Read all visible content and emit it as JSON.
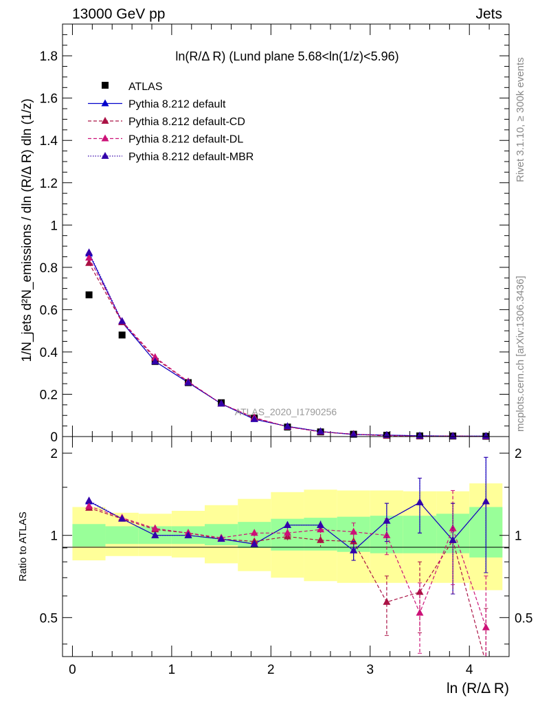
{
  "header": {
    "left": "13000 GeV pp",
    "right": "Jets"
  },
  "side_labels": {
    "rivet": "Rivet 3.1.10, ≥ 300k events",
    "mcplots": "mcplots.cern.ch [arXiv:1306.3436]"
  },
  "watermark": "ATLAS_2020_I1790256",
  "chart_data": [
    {
      "type": "scatter",
      "panel": "main",
      "title": "ln(R/Δ R) (Lund plane 5.68<ln(1/z)<5.96)",
      "xlabel": "ln (R/Δ R)",
      "ylabel": "1/N_jets d²N_emissions / dln (R/Δ R) dln (1/z)",
      "xlim": [
        -0.1,
        4.4
      ],
      "ylim": [
        0,
        1.95
      ],
      "yticks": [
        0,
        0.2,
        0.4,
        0.6,
        0.8,
        1,
        1.2,
        1.4,
        1.6,
        1.8
      ],
      "ytick_labels": [
        "0",
        "0.2",
        "0.4",
        "0.6",
        "0.8",
        "1",
        "1.2",
        "1.4",
        "1.6",
        "1.8"
      ],
      "legend": "top-left",
      "x": [
        0.167,
        0.5,
        0.833,
        1.167,
        1.5,
        1.833,
        2.167,
        2.5,
        2.833,
        3.167,
        3.5,
        3.833,
        4.167
      ],
      "series": [
        {
          "name": "ATLAS",
          "color": "#000000",
          "style": "data",
          "values": [
            0.67,
            0.48,
            0.355,
            0.255,
            0.16,
            0.088,
            0.045,
            0.022,
            0.011,
            0.006,
            0.003,
            0.0025,
            0.0015
          ]
        },
        {
          "name": "Pythia 8.212 default",
          "color": "#0000cc",
          "style": "solid",
          "values": [
            0.865,
            0.54,
            0.355,
            0.255,
            0.155,
            0.082,
            0.048,
            0.024,
            0.0098,
            0.0068,
            0.004,
            0.0024,
            0.002
          ]
        },
        {
          "name": "Pythia 8.212 default-CD",
          "color": "#aa1144",
          "style": "dashed",
          "values": [
            0.82,
            0.54,
            0.37,
            0.258,
            0.155,
            0.087,
            0.046,
            0.022,
            0.011,
            0.0035,
            0.0015,
            0.0025,
            0.0007
          ]
        },
        {
          "name": "Pythia 8.212 default-DL",
          "color": "#cc1177",
          "style": "dashed",
          "values": [
            0.845,
            0.545,
            0.375,
            0.26,
            0.155,
            0.09,
            0.046,
            0.023,
            0.0115,
            0.006,
            0.0016,
            0.0026,
            0.0005
          ]
        },
        {
          "name": "Pythia 8.212 default-MBR",
          "color": "#3300aa",
          "style": "dotted",
          "values": [
            0.87,
            0.545,
            0.355,
            0.255,
            0.155,
            0.082,
            0.048,
            0.024,
            0.0098,
            0.0068,
            0.004,
            0.0024,
            0.002
          ]
        }
      ]
    },
    {
      "type": "scatter",
      "panel": "ratio",
      "xlabel": "ln (R/Δ R)",
      "ylabel": "Ratio to ATLAS",
      "xlim": [
        -0.1,
        4.4
      ],
      "ylim": [
        0.36,
        2.3
      ],
      "yticks": [
        0.5,
        1,
        2
      ],
      "ytick_labels": [
        "0.5",
        "1",
        "2"
      ],
      "xticks": [
        0,
        1,
        2,
        3,
        4
      ],
      "xtick_labels": [
        "0",
        "1",
        "2",
        "3",
        "4"
      ],
      "x": [
        0.167,
        0.5,
        0.833,
        1.167,
        1.5,
        1.833,
        2.167,
        2.5,
        2.833,
        3.167,
        3.5,
        3.833,
        4.167
      ],
      "x_edges": [
        0.0,
        0.333,
        0.667,
        1.0,
        1.333,
        1.667,
        2.0,
        2.333,
        2.667,
        3.0,
        3.333,
        3.667,
        4.0,
        4.333
      ],
      "bands": {
        "inner_color": "#99ff99",
        "outer_color": "#ffff99",
        "inner_lo": [
          0.91,
          0.93,
          0.93,
          0.93,
          0.92,
          0.9,
          0.88,
          0.88,
          0.87,
          0.86,
          0.86,
          0.86,
          0.83
        ],
        "inner_hi": [
          1.1,
          1.08,
          1.08,
          1.08,
          1.1,
          1.12,
          1.15,
          1.16,
          1.17,
          1.18,
          1.18,
          1.2,
          1.27
        ],
        "outer_lo": [
          0.81,
          0.84,
          0.84,
          0.83,
          0.79,
          0.74,
          0.7,
          0.68,
          0.67,
          0.67,
          0.67,
          0.67,
          0.63
        ],
        "outer_hi": [
          1.27,
          1.21,
          1.2,
          1.23,
          1.29,
          1.36,
          1.44,
          1.47,
          1.46,
          1.46,
          1.45,
          1.45,
          1.55
        ]
      },
      "series": [
        {
          "name": "Pythia 8.212 default",
          "color": "#0000cc",
          "style": "solid",
          "values": [
            1.33,
            1.15,
            1.0,
            1.0,
            0.97,
            0.93,
            1.09,
            1.09,
            0.88,
            1.13,
            1.32,
            0.96,
            1.33
          ],
          "err": [
            0.01,
            0.01,
            0.01,
            0.01,
            0.01,
            0.02,
            0.03,
            0.04,
            0.07,
            0.18,
            0.3,
            0.35,
            0.6
          ]
        },
        {
          "name": "Pythia 8.212 default-CD",
          "color": "#aa1144",
          "style": "dashed",
          "values": [
            1.26,
            1.15,
            1.05,
            1.02,
            0.97,
            0.95,
            0.99,
            0.96,
            0.95,
            0.57,
            0.62,
            0.96,
            0.34
          ],
          "err": [
            0.01,
            0.01,
            0.01,
            0.01,
            0.01,
            0.02,
            0.03,
            0.05,
            0.08,
            0.14,
            0.18,
            0.35,
            0.2
          ]
        },
        {
          "name": "Pythia 8.212 default-DL",
          "color": "#cc1177",
          "style": "dashed",
          "values": [
            1.28,
            1.16,
            1.06,
            1.02,
            0.98,
            1.02,
            1.02,
            1.05,
            1.03,
            1.0,
            0.52,
            1.06,
            0.46
          ],
          "err": [
            0.01,
            0.01,
            0.01,
            0.01,
            0.02,
            0.03,
            0.04,
            0.05,
            0.08,
            0.15,
            0.15,
            0.4,
            0.25
          ]
        },
        {
          "name": "Pythia 8.212 default-MBR",
          "color": "#3300aa",
          "style": "dotted",
          "values": [
            1.34,
            1.15,
            1.0,
            1.0,
            0.97,
            0.93,
            1.09,
            1.09,
            0.88,
            1.13,
            1.32,
            0.96,
            1.33
          ],
          "err": [
            0.01,
            0.01,
            0.01,
            0.01,
            0.01,
            0.02,
            0.03,
            0.04,
            0.07,
            0.18,
            0.3,
            0.35,
            0.6
          ]
        }
      ]
    }
  ]
}
